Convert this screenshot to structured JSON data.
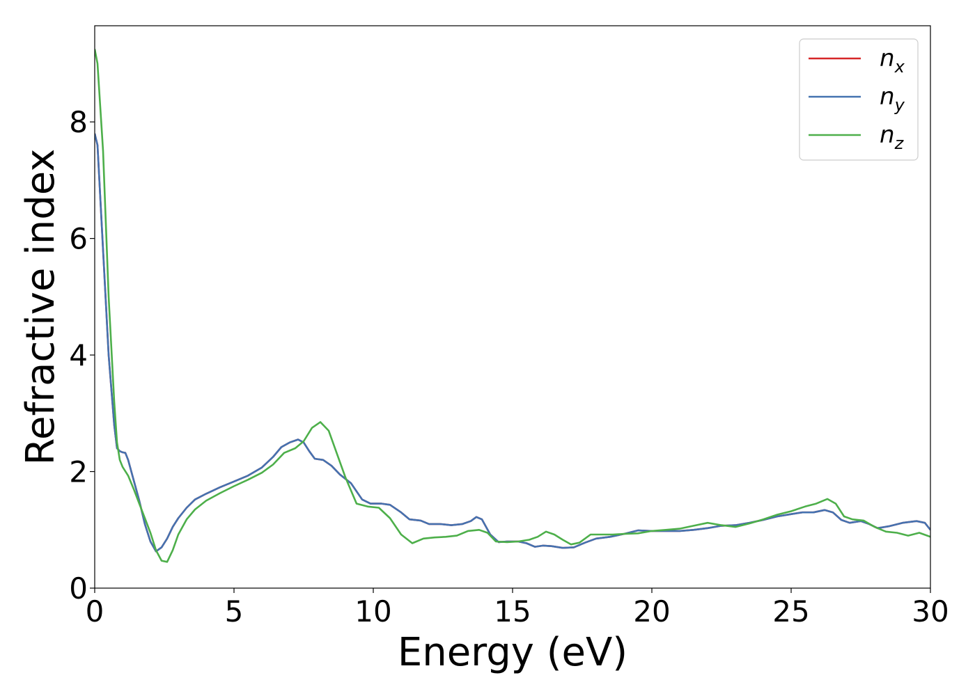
{
  "chart_data": {
    "type": "line",
    "xlabel": "Energy (eV)",
    "ylabel": "Refractive index",
    "xlim": [
      0,
      30
    ],
    "ylim": [
      0,
      9.65
    ],
    "xticks": [
      0,
      5,
      10,
      15,
      20,
      25,
      30
    ],
    "yticks": [
      0,
      2,
      4,
      6,
      8
    ],
    "grid": false,
    "legend_position": "top-right",
    "series": [
      {
        "name": "n",
        "subscript": "x",
        "color": "#d62728",
        "points": [
          [
            0,
            7.8
          ],
          [
            0.1,
            7.6
          ],
          [
            0.3,
            5.8
          ],
          [
            0.5,
            4.0
          ],
          [
            0.7,
            2.8
          ],
          [
            0.8,
            2.4
          ],
          [
            0.9,
            2.35
          ],
          [
            1.0,
            2.33
          ],
          [
            1.1,
            2.32
          ],
          [
            1.2,
            2.2
          ],
          [
            1.4,
            1.85
          ],
          [
            1.6,
            1.5
          ],
          [
            1.8,
            1.1
          ],
          [
            2.0,
            0.8
          ],
          [
            2.2,
            0.63
          ],
          [
            2.4,
            0.7
          ],
          [
            2.6,
            0.85
          ],
          [
            2.8,
            1.05
          ],
          [
            3.0,
            1.2
          ],
          [
            3.3,
            1.38
          ],
          [
            3.6,
            1.52
          ],
          [
            4.0,
            1.62
          ],
          [
            4.5,
            1.73
          ],
          [
            5.0,
            1.83
          ],
          [
            5.5,
            1.93
          ],
          [
            6.0,
            2.07
          ],
          [
            6.4,
            2.25
          ],
          [
            6.7,
            2.42
          ],
          [
            7.0,
            2.5
          ],
          [
            7.3,
            2.55
          ],
          [
            7.5,
            2.5
          ],
          [
            7.7,
            2.35
          ],
          [
            7.9,
            2.22
          ],
          [
            8.2,
            2.2
          ],
          [
            8.5,
            2.1
          ],
          [
            8.8,
            1.95
          ],
          [
            9.2,
            1.8
          ],
          [
            9.6,
            1.52
          ],
          [
            9.9,
            1.45
          ],
          [
            10.3,
            1.45
          ],
          [
            10.6,
            1.43
          ],
          [
            11.0,
            1.3
          ],
          [
            11.3,
            1.18
          ],
          [
            11.7,
            1.16
          ],
          [
            12.0,
            1.1
          ],
          [
            12.4,
            1.1
          ],
          [
            12.8,
            1.08
          ],
          [
            13.2,
            1.1
          ],
          [
            13.5,
            1.15
          ],
          [
            13.7,
            1.22
          ],
          [
            13.9,
            1.18
          ],
          [
            14.2,
            0.92
          ],
          [
            14.5,
            0.79
          ],
          [
            14.8,
            0.8
          ],
          [
            15.2,
            0.8
          ],
          [
            15.5,
            0.77
          ],
          [
            15.8,
            0.71
          ],
          [
            16.1,
            0.73
          ],
          [
            16.4,
            0.72
          ],
          [
            16.8,
            0.69
          ],
          [
            17.2,
            0.7
          ],
          [
            17.6,
            0.78
          ],
          [
            18.0,
            0.85
          ],
          [
            18.5,
            0.88
          ],
          [
            19.0,
            0.93
          ],
          [
            19.5,
            0.99
          ],
          [
            20.0,
            0.98
          ],
          [
            20.5,
            0.98
          ],
          [
            21.0,
            0.98
          ],
          [
            21.5,
            1.0
          ],
          [
            22.0,
            1.03
          ],
          [
            22.5,
            1.07
          ],
          [
            23.0,
            1.08
          ],
          [
            23.5,
            1.12
          ],
          [
            24.0,
            1.17
          ],
          [
            24.5,
            1.23
          ],
          [
            25.0,
            1.27
          ],
          [
            25.4,
            1.3
          ],
          [
            25.8,
            1.3
          ],
          [
            26.2,
            1.34
          ],
          [
            26.5,
            1.3
          ],
          [
            26.8,
            1.17
          ],
          [
            27.1,
            1.12
          ],
          [
            27.5,
            1.15
          ],
          [
            27.8,
            1.1
          ],
          [
            28.1,
            1.03
          ],
          [
            28.5,
            1.06
          ],
          [
            29.0,
            1.12
          ],
          [
            29.5,
            1.15
          ],
          [
            29.8,
            1.12
          ],
          [
            30.0,
            1.0
          ]
        ]
      },
      {
        "name": "n",
        "subscript": "y",
        "color": "#4472b0",
        "points": [
          [
            0,
            7.8
          ],
          [
            0.1,
            7.6
          ],
          [
            0.3,
            5.8
          ],
          [
            0.5,
            4.0
          ],
          [
            0.7,
            2.8
          ],
          [
            0.8,
            2.4
          ],
          [
            0.9,
            2.35
          ],
          [
            1.0,
            2.33
          ],
          [
            1.1,
            2.32
          ],
          [
            1.2,
            2.2
          ],
          [
            1.4,
            1.85
          ],
          [
            1.6,
            1.5
          ],
          [
            1.8,
            1.1
          ],
          [
            2.0,
            0.8
          ],
          [
            2.2,
            0.63
          ],
          [
            2.4,
            0.7
          ],
          [
            2.6,
            0.85
          ],
          [
            2.8,
            1.05
          ],
          [
            3.0,
            1.2
          ],
          [
            3.3,
            1.38
          ],
          [
            3.6,
            1.52
          ],
          [
            4.0,
            1.62
          ],
          [
            4.5,
            1.73
          ],
          [
            5.0,
            1.83
          ],
          [
            5.5,
            1.93
          ],
          [
            6.0,
            2.07
          ],
          [
            6.4,
            2.25
          ],
          [
            6.7,
            2.42
          ],
          [
            7.0,
            2.5
          ],
          [
            7.3,
            2.55
          ],
          [
            7.5,
            2.5
          ],
          [
            7.7,
            2.35
          ],
          [
            7.9,
            2.22
          ],
          [
            8.2,
            2.2
          ],
          [
            8.5,
            2.1
          ],
          [
            8.8,
            1.95
          ],
          [
            9.2,
            1.8
          ],
          [
            9.6,
            1.52
          ],
          [
            9.9,
            1.45
          ],
          [
            10.3,
            1.45
          ],
          [
            10.6,
            1.43
          ],
          [
            11.0,
            1.3
          ],
          [
            11.3,
            1.18
          ],
          [
            11.7,
            1.16
          ],
          [
            12.0,
            1.1
          ],
          [
            12.4,
            1.1
          ],
          [
            12.8,
            1.08
          ],
          [
            13.2,
            1.1
          ],
          [
            13.5,
            1.15
          ],
          [
            13.7,
            1.22
          ],
          [
            13.9,
            1.18
          ],
          [
            14.2,
            0.92
          ],
          [
            14.5,
            0.79
          ],
          [
            14.8,
            0.8
          ],
          [
            15.2,
            0.8
          ],
          [
            15.5,
            0.77
          ],
          [
            15.8,
            0.71
          ],
          [
            16.1,
            0.73
          ],
          [
            16.4,
            0.72
          ],
          [
            16.8,
            0.69
          ],
          [
            17.2,
            0.7
          ],
          [
            17.6,
            0.78
          ],
          [
            18.0,
            0.85
          ],
          [
            18.5,
            0.88
          ],
          [
            19.0,
            0.93
          ],
          [
            19.5,
            0.99
          ],
          [
            20.0,
            0.98
          ],
          [
            20.5,
            0.98
          ],
          [
            21.0,
            0.98
          ],
          [
            21.5,
            1.0
          ],
          [
            22.0,
            1.03
          ],
          [
            22.5,
            1.07
          ],
          [
            23.0,
            1.08
          ],
          [
            23.5,
            1.12
          ],
          [
            24.0,
            1.17
          ],
          [
            24.5,
            1.23
          ],
          [
            25.0,
            1.27
          ],
          [
            25.4,
            1.3
          ],
          [
            25.8,
            1.3
          ],
          [
            26.2,
            1.34
          ],
          [
            26.5,
            1.3
          ],
          [
            26.8,
            1.17
          ],
          [
            27.1,
            1.12
          ],
          [
            27.5,
            1.15
          ],
          [
            27.8,
            1.1
          ],
          [
            28.1,
            1.03
          ],
          [
            28.5,
            1.06
          ],
          [
            29.0,
            1.12
          ],
          [
            29.5,
            1.15
          ],
          [
            29.8,
            1.12
          ],
          [
            30.0,
            1.0
          ]
        ]
      },
      {
        "name": "n",
        "subscript": "z",
        "color": "#4daf4a",
        "points": [
          [
            0,
            9.25
          ],
          [
            0.1,
            9.0
          ],
          [
            0.3,
            7.5
          ],
          [
            0.5,
            5.0
          ],
          [
            0.7,
            3.2
          ],
          [
            0.8,
            2.5
          ],
          [
            0.9,
            2.2
          ],
          [
            1.0,
            2.08
          ],
          [
            1.2,
            1.93
          ],
          [
            1.4,
            1.7
          ],
          [
            1.6,
            1.45
          ],
          [
            1.8,
            1.2
          ],
          [
            2.0,
            0.95
          ],
          [
            2.2,
            0.65
          ],
          [
            2.4,
            0.47
          ],
          [
            2.6,
            0.45
          ],
          [
            2.8,
            0.65
          ],
          [
            3.0,
            0.92
          ],
          [
            3.3,
            1.18
          ],
          [
            3.6,
            1.35
          ],
          [
            4.0,
            1.5
          ],
          [
            4.5,
            1.63
          ],
          [
            5.0,
            1.75
          ],
          [
            5.5,
            1.86
          ],
          [
            6.0,
            1.98
          ],
          [
            6.4,
            2.12
          ],
          [
            6.8,
            2.32
          ],
          [
            7.2,
            2.4
          ],
          [
            7.5,
            2.52
          ],
          [
            7.8,
            2.75
          ],
          [
            8.1,
            2.85
          ],
          [
            8.4,
            2.7
          ],
          [
            8.7,
            2.3
          ],
          [
            9.0,
            1.9
          ],
          [
            9.4,
            1.45
          ],
          [
            9.8,
            1.4
          ],
          [
            10.2,
            1.38
          ],
          [
            10.6,
            1.2
          ],
          [
            11.0,
            0.92
          ],
          [
            11.4,
            0.77
          ],
          [
            11.8,
            0.85
          ],
          [
            12.2,
            0.87
          ],
          [
            12.6,
            0.88
          ],
          [
            13.0,
            0.9
          ],
          [
            13.4,
            0.98
          ],
          [
            13.8,
            1.0
          ],
          [
            14.1,
            0.95
          ],
          [
            14.4,
            0.8
          ],
          [
            14.8,
            0.79
          ],
          [
            15.2,
            0.8
          ],
          [
            15.6,
            0.83
          ],
          [
            15.9,
            0.88
          ],
          [
            16.2,
            0.97
          ],
          [
            16.5,
            0.92
          ],
          [
            16.8,
            0.83
          ],
          [
            17.1,
            0.75
          ],
          [
            17.4,
            0.78
          ],
          [
            17.8,
            0.92
          ],
          [
            18.2,
            0.92
          ],
          [
            18.6,
            0.92
          ],
          [
            19.0,
            0.93
          ],
          [
            19.5,
            0.94
          ],
          [
            20.0,
            0.98
          ],
          [
            20.5,
            1.0
          ],
          [
            21.0,
            1.02
          ],
          [
            21.5,
            1.07
          ],
          [
            22.0,
            1.12
          ],
          [
            22.5,
            1.08
          ],
          [
            23.0,
            1.05
          ],
          [
            23.5,
            1.11
          ],
          [
            24.0,
            1.18
          ],
          [
            24.5,
            1.26
          ],
          [
            25.0,
            1.32
          ],
          [
            25.5,
            1.4
          ],
          [
            25.9,
            1.45
          ],
          [
            26.3,
            1.53
          ],
          [
            26.6,
            1.45
          ],
          [
            26.9,
            1.23
          ],
          [
            27.2,
            1.18
          ],
          [
            27.6,
            1.16
          ],
          [
            28.0,
            1.05
          ],
          [
            28.4,
            0.97
          ],
          [
            28.8,
            0.95
          ],
          [
            29.2,
            0.9
          ],
          [
            29.6,
            0.95
          ],
          [
            30.0,
            0.88
          ]
        ]
      }
    ]
  }
}
